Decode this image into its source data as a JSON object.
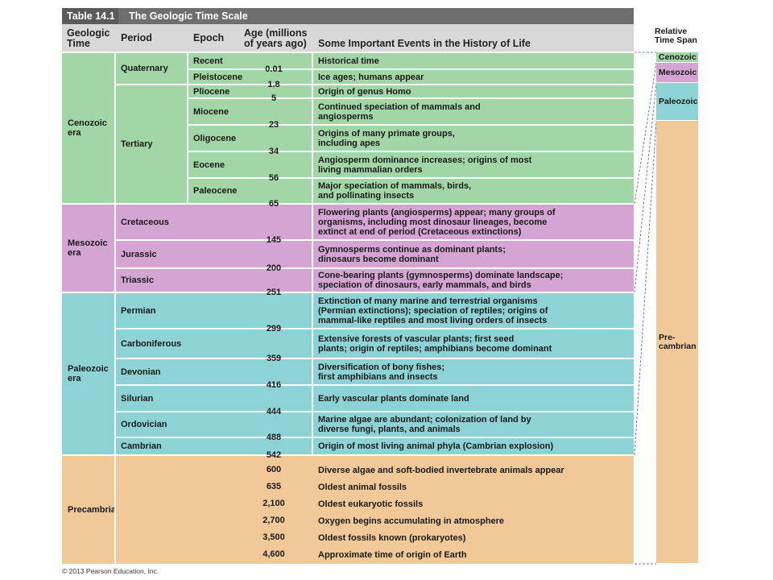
{
  "header": {
    "table_number": "Table 14.1",
    "title": "The Geologic Time Scale"
  },
  "columns": [
    "Geologic Time",
    "Period",
    "Epoch",
    "Age (millions of years ago)",
    "Some Important Events in the History of Life"
  ],
  "eras": [
    {
      "name": "Cenozoic era",
      "periods": [
        {
          "name": "Quaternary",
          "epochs": [
            {
              "name": "Recent",
              "event": "Historical time"
            },
            {
              "name": "Pleistocene",
              "event": "Ice ages; humans appear"
            }
          ]
        },
        {
          "name": "Tertiary",
          "epochs": [
            {
              "name": "Pliocene",
              "event": "Origin of genus Homo"
            },
            {
              "name": "Miocene",
              "event": "Continued speciation of mammals and\nangiosperms"
            },
            {
              "name": "Oligocene",
              "event": "Origins of many primate groups,\nincluding apes"
            },
            {
              "name": "Eocene",
              "event": "Angiosperm dominance increases; origins of most\nliving mammalian orders"
            },
            {
              "name": "Paleocene",
              "event": "Major speciation of mammals, birds,\nand pollinating insects"
            }
          ]
        }
      ]
    },
    {
      "name": "Mesozoic era",
      "periods": [
        {
          "name": "Cretaceous",
          "event": "Flowering plants (angiosperms) appear; many groups of\norganisms, including most dinosaur lineages, become\nextinct at end of period (Cretaceous extinctions)"
        },
        {
          "name": "Jurassic",
          "event": "Gymnosperms continue as dominant plants;\ndinosaurs become dominant"
        },
        {
          "name": "Triassic",
          "event": "Cone-bearing plants (gymnosperms) dominate landscape;\nspeciation of dinosaurs, early mammals, and birds"
        }
      ]
    },
    {
      "name": "Paleozoic era",
      "periods": [
        {
          "name": "Permian",
          "event": "Extinction of many marine and terrestrial organisms\n(Permian extinctions); speciation of reptiles; origins of\nmammal-like reptiles and most living orders of insects"
        },
        {
          "name": "Carboniferous",
          "event": "Extensive forests of vascular plants; first seed\nplants; origin of reptiles; amphibians become dominant"
        },
        {
          "name": "Devonian",
          "event": "Diversification of bony fishes;\nfirst amphibians and insects"
        },
        {
          "name": "Silurian",
          "event": "Early vascular plants dominate land"
        },
        {
          "name": "Ordovician",
          "event": "Marine algae are abundant; colonization of land by\ndiverse fungi, plants, and animals"
        },
        {
          "name": "Cambrian",
          "event": "Origin of most living animal phyla (Cambrian explosion)"
        }
      ]
    },
    {
      "name": "Precambrian",
      "events": [
        "Diverse algae and soft-bodied invertebrate animals appear",
        "Oldest animal fossils",
        "Oldest eukaryotic fossils",
        "Oxygen begins accumulating in atmosphere",
        "Oldest fossils known (prokaryotes)",
        "Approximate time of origin of Earth"
      ]
    }
  ],
  "ages": [
    "0.01",
    "1.8",
    "5",
    "23",
    "34",
    "56",
    "65",
    "145",
    "200",
    "251",
    "299",
    "359",
    "416",
    "444",
    "488",
    "542",
    "600",
    "635",
    "2,100",
    "2,700",
    "3,500",
    "4,600"
  ],
  "relative_time_span": {
    "title": "Relative\nTime Span",
    "segments": [
      "Cenozoic",
      "Mesozoic",
      "Paleozoic",
      "Pre-\ncambrian"
    ]
  },
  "footer": "© 2013 Pearson Education, Inc."
}
